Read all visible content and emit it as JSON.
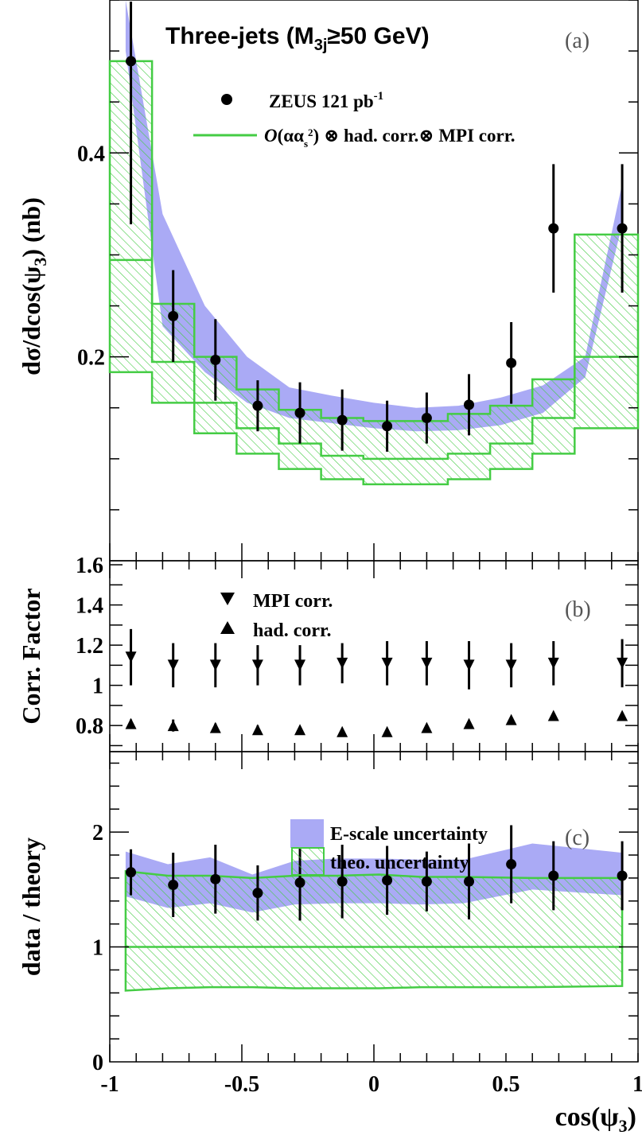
{
  "panels": {
    "a": {
      "label": "(a)",
      "title": "Three-jets (M",
      "title_sub": "3j",
      "title_rest": "≥50 GeV)"
    },
    "b": {
      "label": "(b)"
    },
    "c": {
      "label": "(c)"
    }
  },
  "axes": {
    "ylabel_a": "dσ/dcos(ψ",
    "ylabel_a_sub": "3",
    "ylabel_a_rest": ") (nb)",
    "ylabel_b": "Corr. Factor",
    "ylabel_c": "data / theory",
    "xlabel": "cos(ψ",
    "xlabel_sub": "3",
    "xlabel_rest": ")"
  },
  "legends": {
    "a": {
      "data": "ZEUS 121 pb",
      "data_sup": "-1",
      "theory_O": "O",
      "theory_mid": "(αα",
      "theory_sub": "s",
      "theory_sup": "2",
      "theory_rest": ") ⊗ had. corr.⊗ MPI corr."
    },
    "b": {
      "mpi": "MPI corr.",
      "had": "had. corr."
    },
    "c": {
      "escale": "E-scale uncertainty",
      "theo": "theo. uncertainty"
    }
  },
  "colors": {
    "band": "#aaaaf5",
    "theory": "#44cc44",
    "marker": "#000000"
  },
  "chart_data": [
    {
      "type": "line",
      "panel": "a",
      "xlim": [
        -1,
        1
      ],
      "ylim": [
        0.0,
        0.55
      ],
      "yticks": [
        0.2,
        0.4
      ],
      "xticks": [
        -1,
        -0.5,
        0,
        0.5,
        1
      ],
      "bin_edges": [
        -1,
        -0.867,
        -0.733,
        -0.6,
        -0.467,
        -0.333,
        -0.2,
        -0.067,
        0.067,
        0.2,
        0.333,
        0.467,
        0.6,
        0.733,
        0.867,
        1
      ],
      "data": {
        "name": "ZEUS 121 pb-1",
        "x": [
          -0.92,
          -0.76,
          -0.6,
          -0.44,
          -0.28,
          -0.12,
          0.05,
          0.2,
          0.36,
          0.52,
          0.68,
          0.94
        ],
        "y": [
          0.49,
          0.24,
          0.197,
          0.152,
          0.145,
          0.138,
          0.132,
          0.14,
          0.153,
          0.194,
          0.326,
          0.326
        ],
        "err": [
          0.16,
          0.045,
          0.04,
          0.025,
          0.03,
          0.03,
          0.025,
          0.025,
          0.03,
          0.04,
          0.063,
          0.063
        ]
      },
      "theory_upper": [
        0.49,
        0.252,
        0.2,
        0.168,
        0.148,
        0.14,
        0.137,
        0.137,
        0.144,
        0.152,
        0.178,
        0.32
      ],
      "theory_lower": [
        0.185,
        0.155,
        0.125,
        0.105,
        0.09,
        0.08,
        0.075,
        0.075,
        0.08,
        0.09,
        0.105,
        0.13
      ],
      "theory_mid": [
        0.295,
        0.195,
        0.155,
        0.13,
        0.115,
        0.103,
        0.1,
        0.1,
        0.105,
        0.115,
        0.14,
        0.2
      ]
    },
    {
      "type": "scatter",
      "panel": "b",
      "xlim": [
        -1,
        1
      ],
      "ylim": [
        0.67,
        1.62
      ],
      "yticks": [
        0.8,
        1.0,
        1.2,
        1.4,
        1.6
      ],
      "series": [
        {
          "name": "MPI corr.",
          "marker": "triangle-down",
          "x": [
            -0.92,
            -0.76,
            -0.6,
            -0.44,
            -0.28,
            -0.12,
            0.05,
            0.2,
            0.36,
            0.52,
            0.68,
            0.94
          ],
          "y": [
            1.14,
            1.1,
            1.1,
            1.1,
            1.1,
            1.11,
            1.11,
            1.11,
            1.1,
            1.1,
            1.11,
            1.11
          ],
          "err": [
            0.14,
            0.11,
            0.11,
            0.1,
            0.1,
            0.1,
            0.11,
            0.11,
            0.12,
            0.11,
            0.11,
            0.12
          ]
        },
        {
          "name": "had. corr.",
          "marker": "triangle-up",
          "x": [
            -0.92,
            -0.76,
            -0.6,
            -0.44,
            -0.28,
            -0.12,
            0.05,
            0.2,
            0.36,
            0.52,
            0.68,
            0.94
          ],
          "y": [
            0.81,
            0.8,
            0.79,
            0.78,
            0.78,
            0.77,
            0.77,
            0.79,
            0.81,
            0.83,
            0.85,
            0.85
          ],
          "err": [
            0.02,
            0.03,
            0.02,
            0.02,
            0.01,
            0.01,
            0.01,
            0.01,
            0.01,
            0.01,
            0.01,
            0.01
          ]
        }
      ]
    },
    {
      "type": "line",
      "panel": "c",
      "xlim": [
        -1,
        1
      ],
      "ylim": [
        0,
        2.7
      ],
      "yticks": [
        0,
        1,
        2
      ],
      "data": {
        "name": "data / theory",
        "x": [
          -0.92,
          -0.76,
          -0.6,
          -0.44,
          -0.28,
          -0.12,
          0.05,
          0.2,
          0.36,
          0.52,
          0.68,
          0.94
        ],
        "y": [
          1.65,
          1.54,
          1.59,
          1.47,
          1.56,
          1.57,
          1.58,
          1.57,
          1.57,
          1.72,
          1.62,
          1.62
        ],
        "err": [
          0.2,
          0.28,
          0.3,
          0.24,
          0.33,
          0.32,
          0.3,
          0.26,
          0.33,
          0.34,
          0.3,
          0.3
        ]
      },
      "escale_upper": [
        1.83,
        1.72,
        1.78,
        1.63,
        1.75,
        1.77,
        1.77,
        1.76,
        1.76,
        1.9,
        1.82
      ],
      "escale_lower": [
        1.44,
        1.34,
        1.38,
        1.3,
        1.37,
        1.38,
        1.38,
        1.37,
        1.38,
        1.5,
        1.45
      ],
      "theo_upper": [
        1.66,
        1.62,
        1.62,
        1.6,
        1.62,
        1.62,
        1.63,
        1.61,
        1.61,
        1.6,
        1.6
      ],
      "theo_lower_x": [
        -0.92,
        0.94
      ],
      "theo_lower": [
        0.62,
        0.64,
        0.65,
        0.65,
        0.64,
        0.64,
        0.64,
        0.65,
        0.65,
        0.65,
        0.66
      ],
      "unity": 1
    }
  ]
}
